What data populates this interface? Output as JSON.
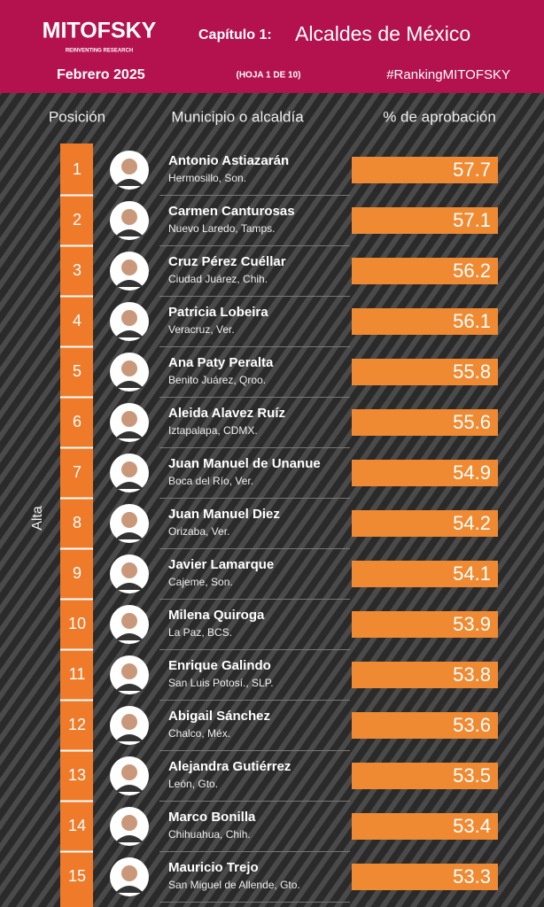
{
  "header": {
    "logo": "MITOFSKY",
    "tagline": "REINVENTING RESEARCH",
    "chapter": "Capítulo 1:",
    "title": "Alcaldes de México",
    "date": "Febrero 2025",
    "sheet": "(HOJA 1 DE 10)",
    "hashtag": "#RankingMITOFSKY"
  },
  "table": {
    "columns": [
      "Posición",
      "Municipio o alcaldía",
      "% de aprobación"
    ],
    "side_label": "Alta",
    "rows": [
      {
        "position": 1,
        "name": "Antonio Astiazarán",
        "place": "Hermosillo, Son.",
        "approval": 57.7
      },
      {
        "position": 2,
        "name": "Carmen Canturosas",
        "place": "Nuevo Laredo, Tamps.",
        "approval": 57.1
      },
      {
        "position": 3,
        "name": "Cruz Pérez Cuéllar",
        "place": "Ciudad Juárez, Chih.",
        "approval": 56.2
      },
      {
        "position": 4,
        "name": "Patricia Lobeira",
        "place": "Veracruz, Ver.",
        "approval": 56.1
      },
      {
        "position": 5,
        "name": "Ana Paty Peralta",
        "place": "Benito Juárez, Qroo.",
        "approval": 55.8
      },
      {
        "position": 6,
        "name": "Aleida Alavez Ruíz",
        "place": "Iztapalapa, CDMX.",
        "approval": 55.6
      },
      {
        "position": 7,
        "name": "Juan Manuel de Unanue",
        "place": "Boca del Río, Ver.",
        "approval": 54.9
      },
      {
        "position": 8,
        "name": "Juan Manuel Diez",
        "place": "Orizaba, Ver.",
        "approval": 54.2
      },
      {
        "position": 9,
        "name": "Javier Lamarque",
        "place": "Cajeme, Son.",
        "approval": 54.1
      },
      {
        "position": 10,
        "name": "Milena Quiroga",
        "place": "La Paz, BCS.",
        "approval": 53.9
      },
      {
        "position": 11,
        "name": "Enrique Galindo",
        "place": "San Luis Potosí., SLP.",
        "approval": 53.8
      },
      {
        "position": 12,
        "name": "Abigail Sánchez",
        "place": "Chalco, Méx.",
        "approval": 53.6
      },
      {
        "position": 13,
        "name": "Alejandra Gutiérrez",
        "place": "León, Gto.",
        "approval": 53.5
      },
      {
        "position": 14,
        "name": "Marco Bonilla",
        "place": "Chihuahua, Chih.",
        "approval": 53.4
      },
      {
        "position": 15,
        "name": "Mauricio Trejo",
        "place": "San Miguel de Allende, Gto.",
        "approval": 53.3
      }
    ]
  }
}
